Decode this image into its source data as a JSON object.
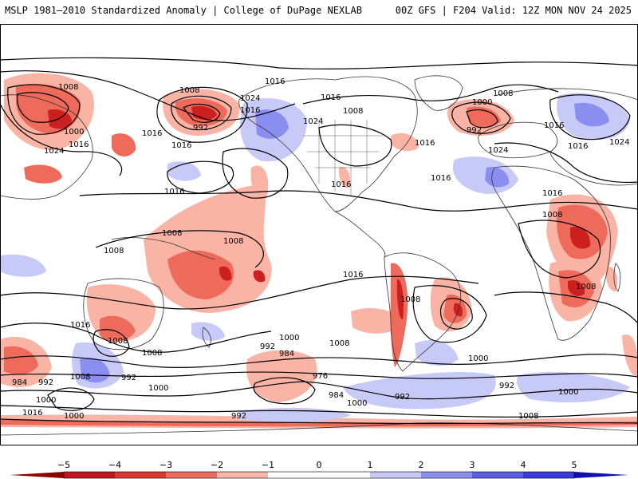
{
  "header": {
    "title_left": "MSLP 1981–2010 Standardized Anomaly | College of DuPage NEXLAB",
    "title_right": "00Z GFS | F204 Valid: 12Z MON NOV 24 2025"
  },
  "colors": {
    "neg_strong": "#cc1f1f",
    "neg_mid": "#ee6a5a",
    "neg_weak": "#f9b4a6",
    "pos_weak": "#c7c9f7",
    "pos_mid": "#8a8ef0",
    "pos_strong": "#3a3ae0",
    "land_outline": "#333333",
    "isobar": "#000000"
  },
  "isobar_labels": [
    "1008",
    "1016",
    "1000",
    "1016",
    "1024",
    "1008",
    "992",
    "1024",
    "1016",
    "1016",
    "1024",
    "1016",
    "1016",
    "1008",
    "1016",
    "1000",
    "992",
    "1008",
    "1024",
    "1016",
    "1016",
    "1024",
    "1016",
    "1008",
    "1008",
    "1008",
    "1016",
    "1016",
    "1008",
    "1008",
    "1008",
    "1016",
    "1016",
    "1008",
    "1016",
    "1008",
    "1000",
    "992",
    "984",
    "976",
    "984",
    "992",
    "1008",
    "1000",
    "992",
    "984",
    "992",
    "1000",
    "1016",
    "1000",
    "992",
    "1000",
    "1008",
    "1000",
    "1008",
    "1000",
    "992"
  ],
  "colorbar": {
    "ticks": [
      "−5",
      "−4",
      "−3",
      "−2",
      "−1",
      "0",
      "1",
      "2",
      "3",
      "4",
      "5"
    ]
  }
}
